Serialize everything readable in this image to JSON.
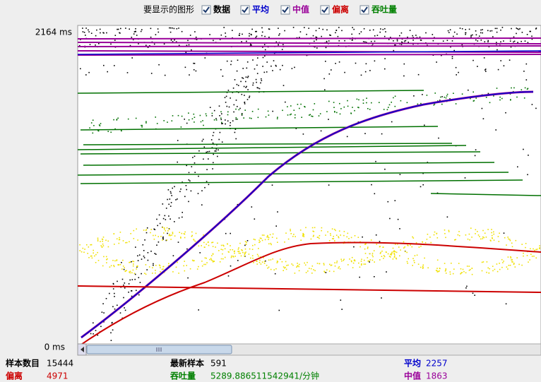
{
  "legend": {
    "title": "要显示的图形",
    "items": [
      {
        "label": "数据",
        "checked": true,
        "color": "#000000"
      },
      {
        "label": "平均",
        "checked": true,
        "color": "#0000cc"
      },
      {
        "label": "中值",
        "checked": true,
        "color": "#990099"
      },
      {
        "label": "偏离",
        "checked": true,
        "color": "#cc0000"
      },
      {
        "label": "吞吐量",
        "checked": true,
        "color": "#008000"
      }
    ]
  },
  "axis": {
    "max_label": "2164 ms",
    "min_label": "0 ms"
  },
  "stats": [
    {
      "label": "样本数目",
      "value": 15444,
      "color": "#000000"
    },
    {
      "label": "最新样本",
      "value": 591,
      "color": "#000000"
    },
    {
      "label": "平均",
      "value": 2257,
      "color": "#0000cc"
    },
    {
      "label": "偏离",
      "value": 4971,
      "color": "#cc0000"
    },
    {
      "label": "吞吐量",
      "value": "5289.886511542941/分钟",
      "color": "#008000"
    },
    {
      "label": "中值",
      "value": 1863,
      "color": "#990099"
    }
  ]
}
